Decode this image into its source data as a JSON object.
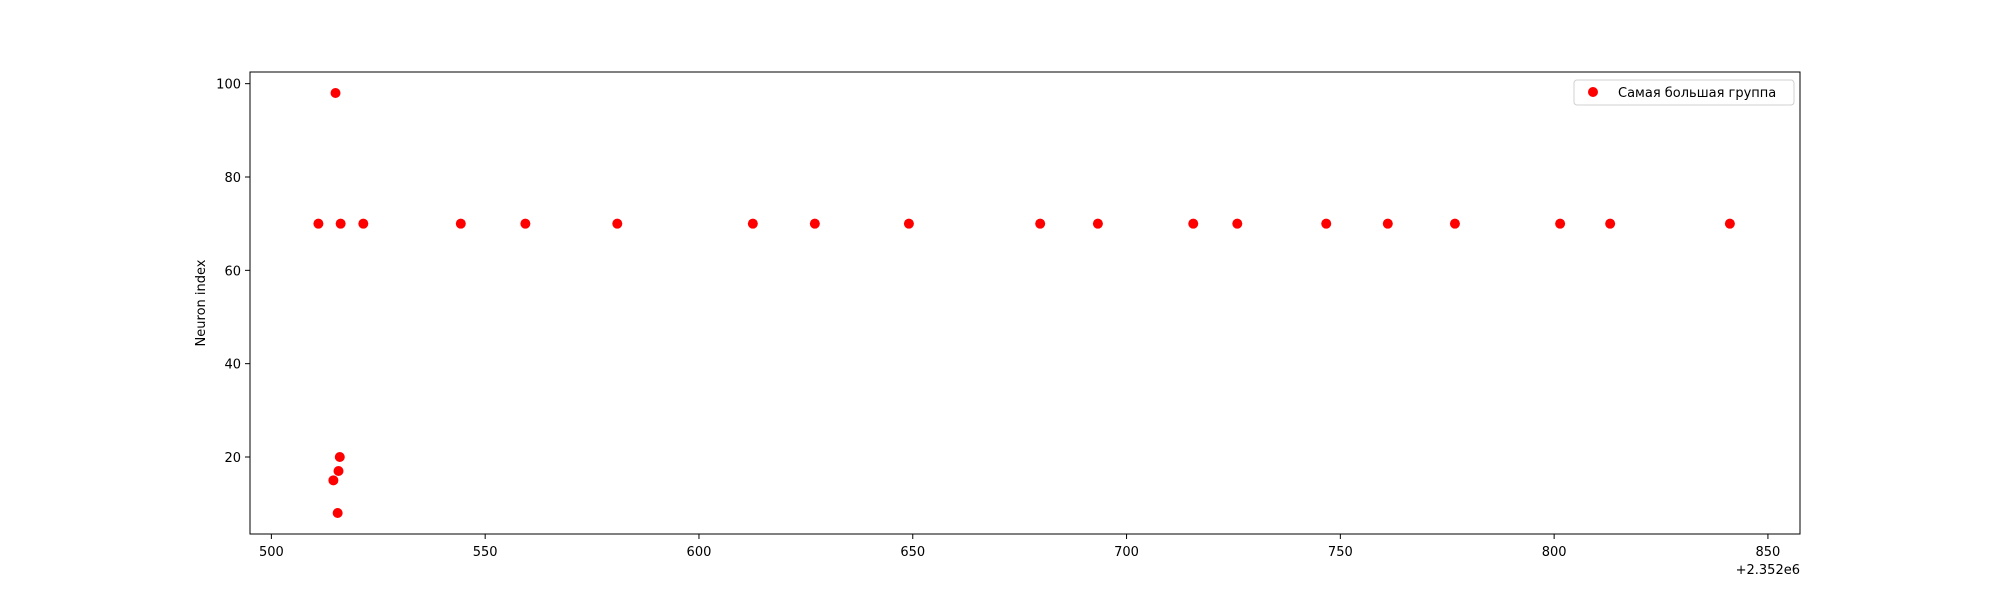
{
  "chart_data": {
    "type": "scatter",
    "title": "",
    "xlabel": "",
    "ylabel": "Neuron index",
    "x_offset_label": "+2.352e6",
    "xlim": [
      495,
      857.5
    ],
    "ylim": [
      3.5,
      102.5
    ],
    "x_ticks": [
      "500",
      "550",
      "600",
      "650",
      "700",
      "750",
      "800",
      "850"
    ],
    "y_ticks": [
      "20",
      "40",
      "60",
      "80",
      "100"
    ],
    "grid": false,
    "legend_position": "top-right",
    "series": [
      {
        "name": "Самая большая группа",
        "color": "#ff0000",
        "x": [
          511,
          514.5,
          515,
          515.5,
          515.7,
          516,
          516.2,
          521.5,
          544.3,
          559.4,
          580.9,
          612.6,
          627.1,
          649.1,
          679.8,
          693.3,
          715.6,
          725.9,
          746.7,
          761.1,
          776.8,
          801.4,
          813.1,
          841.1
        ],
        "y": [
          70,
          15,
          98,
          8,
          17,
          20,
          70,
          70,
          70,
          70,
          70,
          70,
          70,
          70,
          70,
          70,
          70,
          70,
          70,
          70,
          70,
          70,
          70,
          70
        ]
      }
    ]
  }
}
